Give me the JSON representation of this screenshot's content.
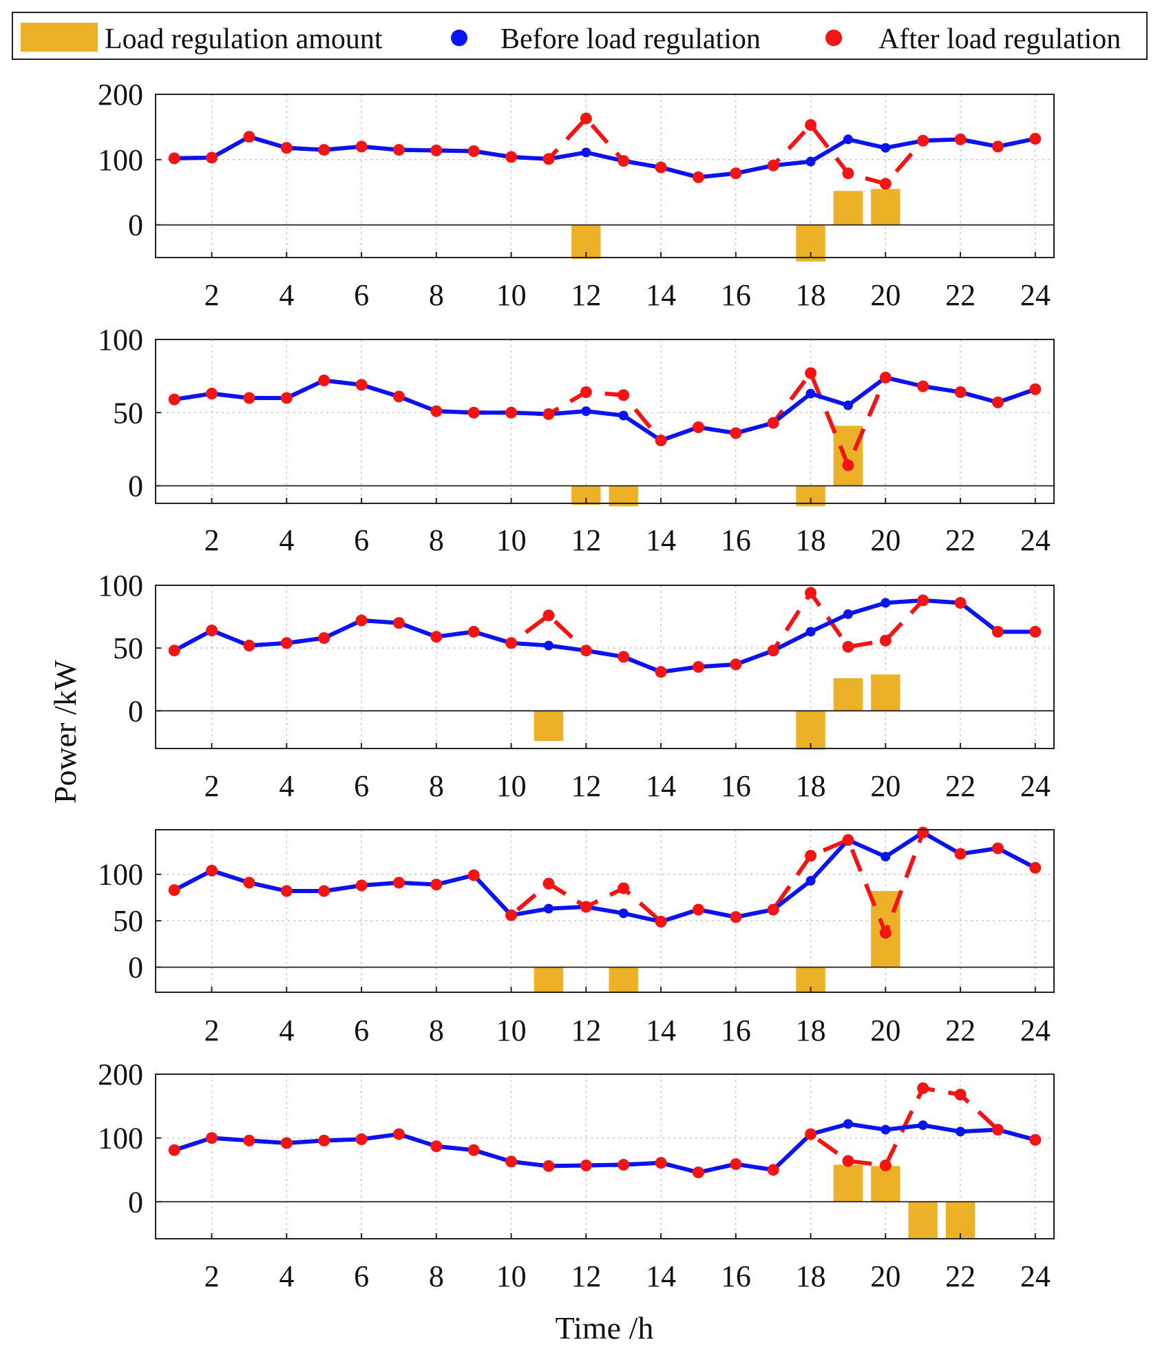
{
  "colors": {
    "before": "#0a14f0",
    "after": "#f51414",
    "bar": "#ecb127"
  },
  "legend": {
    "bar_label": "Load regulation amount",
    "before_label": "Before load regulation",
    "after_label": "After load regulation"
  },
  "chart_data": [
    {
      "type": "line",
      "ylim": [
        -50,
        200
      ],
      "yticks": [
        0,
        100,
        200
      ],
      "xlim": [
        0.5,
        24.5
      ],
      "xticks": [
        2,
        4,
        6,
        8,
        10,
        12,
        14,
        16,
        18,
        20,
        22,
        24
      ],
      "before": [
        102,
        103,
        135,
        118,
        115,
        120,
        115,
        114,
        113,
        104,
        101,
        111,
        98,
        88,
        73,
        79,
        91,
        97,
        131,
        118,
        129,
        131,
        120,
        132
      ],
      "after": [
        102,
        103,
        135,
        118,
        115,
        120,
        115,
        114,
        113,
        104,
        101,
        163,
        98,
        88,
        73,
        79,
        91,
        153,
        79,
        63,
        129,
        131,
        120,
        132
      ],
      "regulation": [
        0,
        0,
        0,
        0,
        0,
        0,
        0,
        0,
        0,
        0,
        0,
        -52,
        0,
        0,
        0,
        0,
        0,
        -56,
        52,
        55,
        0,
        0,
        0,
        0
      ]
    },
    {
      "type": "line",
      "ylim": [
        -12,
        100
      ],
      "yticks": [
        0,
        50,
        100
      ],
      "xlim": [
        0.5,
        24.5
      ],
      "xticks": [
        2,
        4,
        6,
        8,
        10,
        12,
        14,
        16,
        18,
        20,
        22,
        24
      ],
      "before": [
        59,
        63,
        60,
        60,
        72,
        69,
        61,
        51,
        50,
        50,
        49,
        51,
        48,
        31,
        40,
        36,
        43,
        63,
        55,
        74,
        68,
        64,
        57,
        66
      ],
      "after": [
        59,
        63,
        60,
        60,
        72,
        69,
        61,
        51,
        50,
        50,
        49,
        64,
        62,
        31,
        40,
        36,
        43,
        77,
        14,
        74,
        68,
        64,
        57,
        66
      ],
      "regulation": [
        0,
        0,
        0,
        0,
        0,
        0,
        0,
        0,
        0,
        0,
        0,
        -13,
        -14,
        0,
        0,
        0,
        0,
        -14,
        41,
        0,
        0,
        0,
        0,
        0
      ]
    },
    {
      "type": "line",
      "ylim": [
        -30,
        100
      ],
      "yticks": [
        0,
        50,
        100
      ],
      "xlim": [
        0.5,
        24.5
      ],
      "xticks": [
        2,
        4,
        6,
        8,
        10,
        12,
        14,
        16,
        18,
        20,
        22,
        24
      ],
      "ylabel": "Power /kW",
      "before": [
        48,
        64,
        52,
        54,
        58,
        72,
        70,
        59,
        63,
        54,
        52,
        48,
        43,
        31,
        35,
        37,
        48,
        63,
        77,
        86,
        88,
        86,
        63,
        63
      ],
      "after": [
        48,
        64,
        52,
        54,
        58,
        72,
        70,
        59,
        63,
        54,
        76,
        48,
        43,
        31,
        35,
        37,
        48,
        94,
        51,
        56,
        88,
        86,
        63,
        63
      ],
      "regulation": [
        0,
        0,
        0,
        0,
        0,
        0,
        0,
        0,
        0,
        0,
        -24,
        0,
        0,
        0,
        0,
        0,
        0,
        -31,
        26,
        29,
        0,
        0,
        0,
        0
      ]
    },
    {
      "type": "line",
      "ylim": [
        -27,
        148
      ],
      "yticks": [
        0,
        50,
        100
      ],
      "xlim": [
        0.5,
        24.5
      ],
      "xticks": [
        2,
        4,
        6,
        8,
        10,
        12,
        14,
        16,
        18,
        20,
        22,
        24
      ],
      "before": [
        83,
        104,
        91,
        82,
        82,
        88,
        91,
        89,
        99,
        56,
        63,
        65,
        58,
        49,
        62,
        54,
        62,
        93,
        137,
        119,
        145,
        122,
        128,
        107
      ],
      "after": [
        83,
        104,
        91,
        82,
        82,
        88,
        91,
        89,
        99,
        56,
        90,
        65,
        85,
        49,
        62,
        54,
        62,
        120,
        137,
        37,
        145,
        122,
        128,
        107
      ],
      "regulation": [
        0,
        0,
        0,
        0,
        0,
        0,
        0,
        0,
        0,
        0,
        -27,
        0,
        -27,
        0,
        0,
        0,
        0,
        -27,
        0,
        82,
        0,
        0,
        0,
        0
      ]
    },
    {
      "type": "line",
      "ylim": [
        -58,
        200
      ],
      "yticks": [
        0,
        100,
        200
      ],
      "xlim": [
        0.5,
        24.5
      ],
      "xticks": [
        2,
        4,
        6,
        8,
        10,
        12,
        14,
        16,
        18,
        20,
        22,
        24
      ],
      "xlabel": "Time /h",
      "before": [
        81,
        100,
        96,
        92,
        96,
        98,
        106,
        87,
        81,
        63,
        56,
        57,
        58,
        61,
        46,
        59,
        50,
        106,
        122,
        113,
        120,
        110,
        113,
        97
      ],
      "after": [
        81,
        100,
        96,
        92,
        96,
        98,
        106,
        87,
        81,
        63,
        56,
        57,
        58,
        61,
        46,
        59,
        50,
        106,
        64,
        57,
        178,
        168,
        113,
        97
      ],
      "regulation": [
        0,
        0,
        0,
        0,
        0,
        0,
        0,
        0,
        0,
        0,
        0,
        0,
        0,
        0,
        0,
        0,
        0,
        0,
        58,
        56,
        -58,
        -58,
        0,
        0
      ]
    }
  ]
}
